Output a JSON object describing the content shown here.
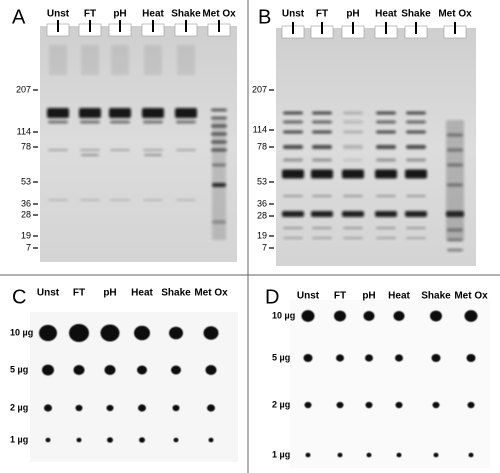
{
  "panels": [
    {
      "label": "A",
      "lanes": [
        "Unst",
        "FT",
        "pH",
        "Heat",
        "Shake",
        "Met Ox"
      ],
      "markers": [
        "207",
        "114",
        "78",
        "53",
        "36",
        "28",
        "19",
        "7"
      ]
    },
    {
      "label": "B",
      "lanes": [
        "Unst",
        "FT",
        "pH",
        "Heat",
        "Shake",
        "Met Ox"
      ],
      "markers": [
        "207",
        "114",
        "78",
        "53",
        "36",
        "28",
        "19",
        "7"
      ]
    },
    {
      "label": "C",
      "lanes": [
        "Unst",
        "FT",
        "pH",
        "Heat",
        "Shake",
        "Met Ox"
      ],
      "rows": [
        "10 µg",
        "5 µg",
        "2 µg",
        "1 µg"
      ]
    },
    {
      "label": "D",
      "lanes": [
        "Unst",
        "FT",
        "pH",
        "Heat",
        "Shake",
        "Met Ox"
      ],
      "rows": [
        "10 µg",
        "5 µg",
        "2 µg",
        "1 µg"
      ]
    }
  ]
}
